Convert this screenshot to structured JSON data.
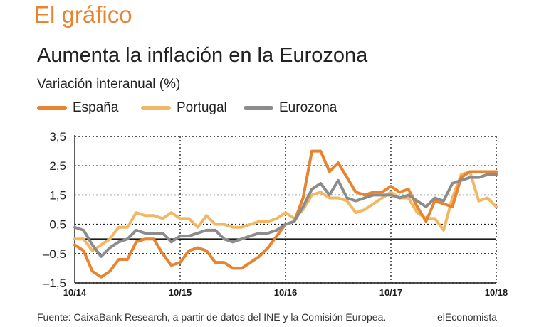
{
  "header": {
    "section": "El gráfico",
    "title": "Aumenta la inflación en la Eurozona",
    "subtitle": "Variación interanual (%)"
  },
  "footer": {
    "source": "Fuente: CaixaBank Research, a partir de datos del INE y la Comisión Europea.",
    "brand": "elEconomista"
  },
  "chart_data": {
    "type": "line",
    "title": "Aumenta la inflación en la Eurozona",
    "ylabel": "Variación interanual (%)",
    "xlabel": "",
    "ylim": [
      -1.5,
      3.5
    ],
    "yticks": [
      -1.5,
      -0.5,
      0.5,
      1.5,
      2.5,
      3.5
    ],
    "ytick_labels": [
      "–1,5",
      "–0,5",
      "0,5",
      "1,5",
      "2,5",
      "3,5"
    ],
    "xticks": [
      0,
      12,
      24,
      36,
      48
    ],
    "xtick_labels": [
      "10/14",
      "10/15",
      "10/16",
      "10/17",
      "10/18"
    ],
    "x_range": [
      0,
      48
    ],
    "grid": true,
    "legend_position": "top-left",
    "x": [
      0,
      1,
      2,
      3,
      4,
      5,
      6,
      7,
      8,
      9,
      10,
      11,
      12,
      13,
      14,
      15,
      16,
      17,
      18,
      19,
      20,
      21,
      22,
      23,
      24,
      25,
      26,
      27,
      28,
      29,
      30,
      31,
      32,
      33,
      34,
      35,
      36,
      37,
      38,
      39,
      40,
      41,
      42,
      43,
      44,
      45,
      46,
      47,
      48
    ],
    "series": [
      {
        "name": "España",
        "color": "#e8832f",
        "values": [
          -0.2,
          -0.4,
          -1.1,
          -1.3,
          -1.1,
          -0.7,
          -0.7,
          -0.1,
          0.0,
          0.0,
          -0.5,
          -0.9,
          -0.8,
          -0.4,
          -0.3,
          -0.4,
          -0.8,
          -0.8,
          -1.0,
          -1.0,
          -0.8,
          -0.6,
          -0.3,
          0.1,
          0.5,
          0.6,
          1.4,
          3.0,
          3.0,
          2.3,
          2.6,
          2.1,
          1.6,
          1.5,
          1.6,
          1.6,
          1.8,
          1.6,
          1.7,
          1.1,
          0.6,
          1.3,
          1.2,
          1.1,
          2.1,
          2.3,
          2.3,
          2.3,
          2.3
        ]
      },
      {
        "name": "Portugal",
        "color": "#f2b764",
        "values": [
          0.0,
          0.0,
          -0.4,
          -0.2,
          0.0,
          0.4,
          0.4,
          0.9,
          0.8,
          0.8,
          0.7,
          0.9,
          0.7,
          0.7,
          0.4,
          0.8,
          0.5,
          0.5,
          0.4,
          0.4,
          0.5,
          0.6,
          0.6,
          0.7,
          0.9,
          0.7,
          1.0,
          1.5,
          1.6,
          1.4,
          1.4,
          1.3,
          0.9,
          1.0,
          1.2,
          1.4,
          1.6,
          1.4,
          1.4,
          0.9,
          0.7,
          0.7,
          0.3,
          1.4,
          2.2,
          2.3,
          1.3,
          1.4,
          1.1
        ]
      },
      {
        "name": "Eurozona",
        "color": "#8c8c8c",
        "values": [
          0.4,
          0.3,
          -0.2,
          -0.6,
          -0.3,
          -0.1,
          0.0,
          0.3,
          0.2,
          0.2,
          0.2,
          -0.1,
          0.1,
          0.1,
          0.2,
          0.3,
          0.3,
          0.0,
          -0.1,
          0.0,
          0.1,
          0.2,
          0.2,
          0.3,
          0.5,
          0.6,
          1.1,
          1.7,
          1.9,
          1.5,
          2.0,
          1.4,
          1.3,
          1.4,
          1.5,
          1.5,
          1.5,
          1.4,
          1.5,
          1.3,
          1.1,
          1.4,
          1.3,
          1.9,
          2.0,
          2.1,
          2.1,
          2.2,
          2.2
        ]
      }
    ]
  }
}
